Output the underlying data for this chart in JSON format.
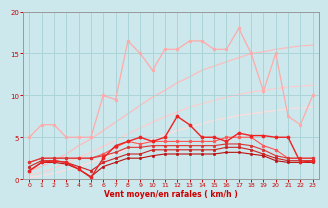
{
  "background_color": "#cce8ec",
  "grid_color": "#aad4d8",
  "xlabel": "Vent moyen/en rafales ( km/h )",
  "xlabel_color": "#cc0000",
  "tick_color": "#cc0000",
  "xlim": [
    -0.5,
    23.5
  ],
  "ylim": [
    0,
    20
  ],
  "xticks": [
    0,
    1,
    2,
    3,
    4,
    5,
    6,
    7,
    8,
    9,
    10,
    11,
    12,
    13,
    14,
    15,
    16,
    17,
    18,
    19,
    20,
    21,
    22,
    23
  ],
  "yticks": [
    0,
    5,
    10,
    15,
    20
  ],
  "lines": [
    {
      "comment": "light pink with markers - zigzag high values",
      "x": [
        0,
        1,
        2,
        3,
        4,
        5,
        6,
        7,
        8,
        9,
        10,
        11,
        12,
        13,
        14,
        15,
        16,
        17,
        18,
        19,
        20,
        21,
        22,
        23
      ],
      "y": [
        5.0,
        6.5,
        6.5,
        5.0,
        5.0,
        5.0,
        10.0,
        9.5,
        16.5,
        15.0,
        13.0,
        15.5,
        15.5,
        16.5,
        16.5,
        15.5,
        15.5,
        18.0,
        15.0,
        10.5,
        15.0,
        7.5,
        6.5,
        10.0
      ],
      "color": "#ffaaaa",
      "marker": "o",
      "markersize": 2.0,
      "linewidth": 0.9,
      "zorder": 4
    },
    {
      "comment": "pale pink linear ramp - top diagonal",
      "x": [
        0,
        1,
        2,
        3,
        4,
        5,
        6,
        7,
        8,
        9,
        10,
        11,
        12,
        13,
        14,
        15,
        16,
        17,
        18,
        19,
        20,
        21,
        22,
        23
      ],
      "y": [
        1.0,
        1.5,
        2.2,
        3.0,
        4.0,
        4.8,
        5.8,
        6.8,
        7.8,
        8.8,
        9.8,
        10.6,
        11.5,
        12.2,
        13.0,
        13.5,
        14.0,
        14.5,
        15.0,
        15.2,
        15.5,
        15.7,
        15.9,
        16.0
      ],
      "color": "#ffbbbb",
      "marker": null,
      "linewidth": 0.9,
      "zorder": 1
    },
    {
      "comment": "pale pink second diagonal lower",
      "x": [
        0,
        1,
        2,
        3,
        4,
        5,
        6,
        7,
        8,
        9,
        10,
        11,
        12,
        13,
        14,
        15,
        16,
        17,
        18,
        19,
        20,
        21,
        22,
        23
      ],
      "y": [
        0.5,
        0.8,
        1.3,
        1.9,
        2.6,
        3.2,
        3.9,
        4.6,
        5.4,
        6.1,
        6.8,
        7.4,
        8.0,
        8.6,
        9.0,
        9.4,
        9.8,
        10.1,
        10.4,
        10.6,
        10.8,
        11.0,
        11.1,
        11.2
      ],
      "color": "#ffcccc",
      "marker": null,
      "linewidth": 0.9,
      "zorder": 1
    },
    {
      "comment": "pale pink third diagonal lowest",
      "x": [
        0,
        1,
        2,
        3,
        4,
        5,
        6,
        7,
        8,
        9,
        10,
        11,
        12,
        13,
        14,
        15,
        16,
        17,
        18,
        19,
        20,
        21,
        22,
        23
      ],
      "y": [
        0.2,
        0.4,
        0.7,
        1.1,
        1.5,
        2.0,
        2.5,
        3.0,
        3.6,
        4.2,
        4.8,
        5.3,
        5.8,
        6.2,
        6.6,
        7.0,
        7.3,
        7.6,
        7.8,
        8.0,
        8.2,
        8.4,
        8.5,
        8.6
      ],
      "color": "#ffdddd",
      "marker": null,
      "linewidth": 0.9,
      "zorder": 1
    },
    {
      "comment": "dark red with markers - main active line zigzag",
      "x": [
        0,
        1,
        2,
        3,
        4,
        5,
        6,
        7,
        8,
        9,
        10,
        11,
        12,
        13,
        14,
        15,
        16,
        17,
        18,
        19,
        20,
        21,
        22,
        23
      ],
      "y": [
        1.0,
        2.0,
        2.2,
        2.0,
        1.2,
        0.2,
        2.5,
        4.0,
        4.5,
        5.0,
        4.5,
        5.0,
        7.5,
        6.5,
        5.0,
        5.0,
        4.5,
        5.5,
        5.2,
        5.2,
        5.0,
        5.0,
        2.0,
        2.2
      ],
      "color": "#ee2222",
      "marker": "o",
      "markersize": 2.2,
      "linewidth": 1.0,
      "zorder": 5
    },
    {
      "comment": "medium red with markers - second active",
      "x": [
        0,
        1,
        2,
        3,
        4,
        5,
        6,
        7,
        8,
        9,
        10,
        11,
        12,
        13,
        14,
        15,
        16,
        17,
        18,
        19,
        20,
        21,
        22,
        23
      ],
      "y": [
        2.0,
        2.5,
        2.5,
        2.5,
        2.5,
        2.5,
        3.0,
        3.8,
        4.5,
        4.2,
        4.5,
        4.5,
        4.5,
        4.5,
        4.5,
        4.5,
        5.0,
        5.0,
        5.0,
        4.0,
        3.5,
        2.5,
        2.5,
        2.5
      ],
      "color": "#ff5555",
      "marker": "o",
      "markersize": 2.0,
      "linewidth": 0.8,
      "zorder": 4
    },
    {
      "comment": "medium red slightly lower - flat-ish",
      "x": [
        0,
        1,
        2,
        3,
        4,
        5,
        6,
        7,
        8,
        9,
        10,
        11,
        12,
        13,
        14,
        15,
        16,
        17,
        18,
        19,
        20,
        21,
        22,
        23
      ],
      "y": [
        2.0,
        2.5,
        2.5,
        2.5,
        2.5,
        2.5,
        2.8,
        3.2,
        3.8,
        3.8,
        4.0,
        4.0,
        4.0,
        4.0,
        4.0,
        4.0,
        4.2,
        4.2,
        4.0,
        3.5,
        2.8,
        2.5,
        2.5,
        2.5
      ],
      "color": "#dd3333",
      "marker": "o",
      "markersize": 1.8,
      "linewidth": 0.8,
      "zorder": 4
    },
    {
      "comment": "dark red nearly flat bottom",
      "x": [
        0,
        1,
        2,
        3,
        4,
        5,
        6,
        7,
        8,
        9,
        10,
        11,
        12,
        13,
        14,
        15,
        16,
        17,
        18,
        19,
        20,
        21,
        22,
        23
      ],
      "y": [
        1.5,
        2.2,
        2.2,
        2.0,
        1.5,
        1.0,
        2.0,
        2.5,
        3.0,
        3.0,
        3.5,
        3.5,
        3.5,
        3.5,
        3.5,
        3.5,
        3.8,
        3.8,
        3.5,
        3.0,
        2.5,
        2.2,
        2.2,
        2.2
      ],
      "color": "#cc2222",
      "marker": "o",
      "markersize": 1.8,
      "linewidth": 0.8,
      "zorder": 4
    },
    {
      "comment": "deep dark red - very flat near bottom with dip",
      "x": [
        0,
        1,
        2,
        3,
        4,
        5,
        6,
        7,
        8,
        9,
        10,
        11,
        12,
        13,
        14,
        15,
        16,
        17,
        18,
        19,
        20,
        21,
        22,
        23
      ],
      "y": [
        1.0,
        2.0,
        2.0,
        1.8,
        1.2,
        0.3,
        1.5,
        2.0,
        2.5,
        2.5,
        2.8,
        3.0,
        3.0,
        3.0,
        3.0,
        3.0,
        3.2,
        3.2,
        3.0,
        2.8,
        2.2,
        2.0,
        2.0,
        2.0
      ],
      "color": "#bb1111",
      "marker": "o",
      "markersize": 1.6,
      "linewidth": 0.8,
      "zorder": 4
    }
  ]
}
